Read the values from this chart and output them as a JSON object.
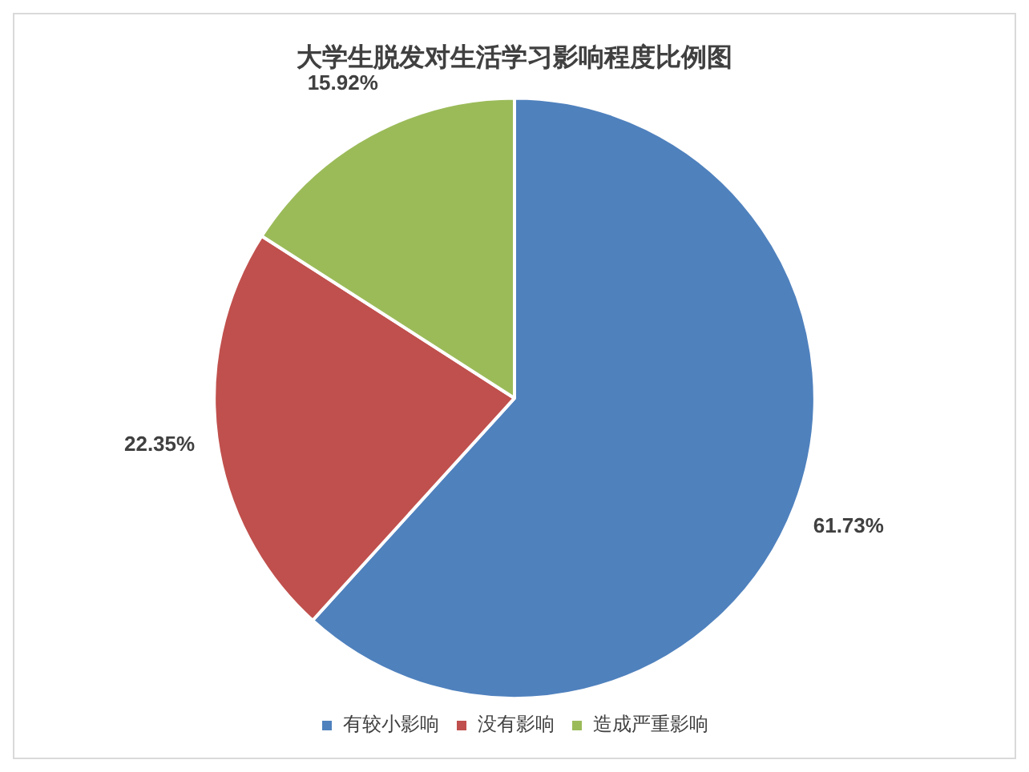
{
  "chart_data": {
    "type": "pie",
    "title": "大学生脱发对生活学习影响程度比例图",
    "categories": [
      "有较小影响",
      "没有影响",
      "造成严重影响"
    ],
    "values": [
      61.73,
      22.35,
      15.92
    ],
    "value_labels": [
      "61.73%",
      "22.35%",
      "15.92%"
    ],
    "colors": [
      "#4f81bd",
      "#c0504d",
      "#9bbb59"
    ],
    "legend": "bottom"
  }
}
